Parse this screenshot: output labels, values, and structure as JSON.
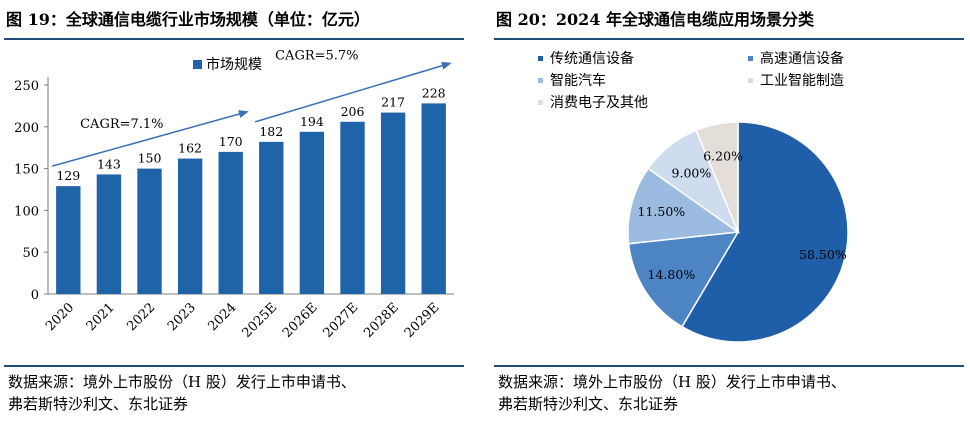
{
  "left": {
    "title": "图 19：全球通信电缆行业市场规模（单位：亿元）",
    "source_line1": "数据来源：境外上市股份（H 股）发行上市申请书、",
    "source_line2": "弗若斯特沙利文、东北证券"
  },
  "right": {
    "title": "图 20：2024 年全球通信电缆应用场景分类",
    "source_line1": "数据来源：境外上市股份（H 股）发行上市申请书、",
    "source_line2": "弗若斯特沙利文、东北证券"
  },
  "chart_data": [
    {
      "type": "bar",
      "title": "图 19：全球通信电缆行业市场规模（单位：亿元）",
      "categories": [
        "2020",
        "2021",
        "2022",
        "2023",
        "2024",
        "2025E",
        "2026E",
        "2027E",
        "2028E",
        "2029E"
      ],
      "series": [
        {
          "name": "市场规模",
          "values": [
            129,
            143,
            150,
            162,
            170,
            182,
            194,
            206,
            217,
            228
          ],
          "color": "#1f63a8"
        }
      ],
      "ylim": [
        0,
        250
      ],
      "yticks": [
        0,
        50,
        100,
        150,
        200,
        250
      ],
      "grid": false,
      "legend": "top-left",
      "annotations": [
        {
          "text": "CAGR=7.1%",
          "from": "2020",
          "to": "2024"
        },
        {
          "text": "CAGR=5.7%",
          "from": "2025E",
          "to": "2029E"
        }
      ]
    },
    {
      "type": "pie",
      "title": "图 20：2024 年全球通信电缆应用场景分类",
      "slices": [
        {
          "name": "传统通信设备",
          "value": 58.5,
          "label": "58.50%",
          "color": "#1f5fa9"
        },
        {
          "name": "高速通信设备",
          "value": 14.8,
          "label": "14.80%",
          "color": "#4c84c4"
        },
        {
          "name": "智能汽车",
          "value": 11.5,
          "label": "11.50%",
          "color": "#9bbbe0"
        },
        {
          "name": "工业智能制造",
          "value": 9.0,
          "label": "9.00%",
          "color": "#cfdcee"
        },
        {
          "name": "消费电子及其他",
          "value": 6.2,
          "label": "6.20%",
          "color": "#e3dfd8"
        }
      ],
      "legend": "top"
    }
  ]
}
